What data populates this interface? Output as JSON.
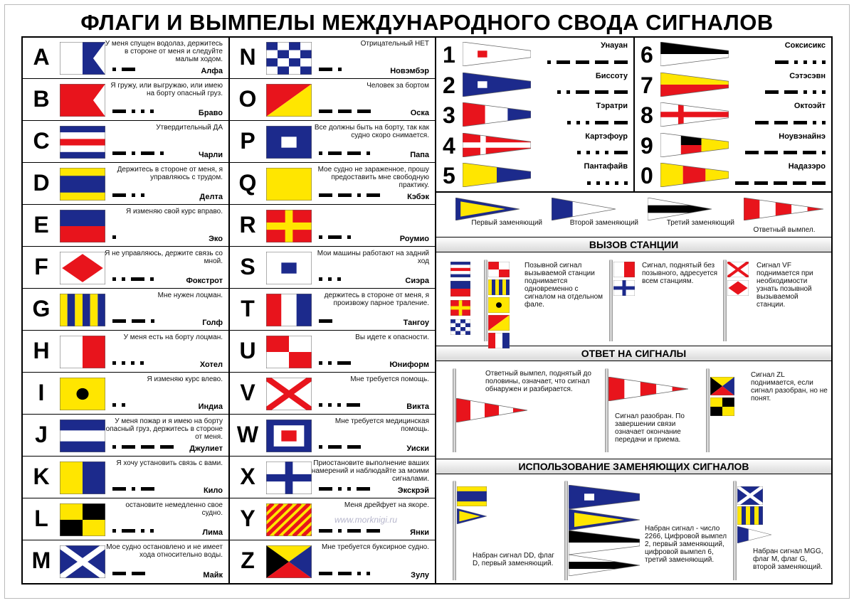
{
  "title": "ФЛАГИ И ВЫМПЕЛЫ МЕЖДУНАРОДНОГО СВОДА СИГНАЛОВ",
  "letters": [
    {
      "letter": "A",
      "meaning": "У меня спущен водолаз, держитесь в стороне от меня и следуйте малым ходом.",
      "name": "Алфа"
    },
    {
      "letter": "B",
      "meaning": "Я гружу, или выгружаю, или имею на борту опасный груз.",
      "name": "Браво"
    },
    {
      "letter": "C",
      "meaning": "Утвердительный ДА",
      "name": "Чарли"
    },
    {
      "letter": "D",
      "meaning": "Держитесь в стороне от меня, я управляюсь с трудом.",
      "name": "Делта"
    },
    {
      "letter": "E",
      "meaning": "Я изменяю свой курс вправо.",
      "name": "Эко"
    },
    {
      "letter": "F",
      "meaning": "Я не управляюсь, держите связь со мной.",
      "name": "Фокстрот"
    },
    {
      "letter": "G",
      "meaning": "Мне нужен лоцман.",
      "name": "Голф"
    },
    {
      "letter": "H",
      "meaning": "У меня есть на борту лоцман.",
      "name": "Хотел"
    },
    {
      "letter": "I",
      "meaning": "Я изменяю курс влево.",
      "name": "Индиа"
    },
    {
      "letter": "J",
      "meaning": "У меня пожар и я имею на борту опасный груз, держитесь в стороне от меня.",
      "name": "Джулиет"
    },
    {
      "letter": "K",
      "meaning": "Я хочу установить связь с вами.",
      "name": "Кило"
    },
    {
      "letter": "L",
      "meaning": "остановите немедленно свое судно.",
      "name": "Лима"
    },
    {
      "letter": "M",
      "meaning": "Мое судно остановлено и не имеет хода относительно воды.",
      "name": "Майк"
    },
    {
      "letter": "N",
      "meaning": "Отрицательный НЕТ",
      "name": "Новэмбэр"
    },
    {
      "letter": "O",
      "meaning": "Человек за бортом",
      "name": "Оска"
    },
    {
      "letter": "P",
      "meaning": "Все должны быть на борту, так как судно скоро снимается.",
      "name": "Папа"
    },
    {
      "letter": "Q",
      "meaning": "Мое судно не зараженное, прошу предоставить мне свободную практику.",
      "name": "Кэбэк"
    },
    {
      "letter": "R",
      "name": "Роумио"
    },
    {
      "letter": "S",
      "meaning": "Мои машины работают на задний ход",
      "name": "Сиэра"
    },
    {
      "letter": "T",
      "meaning": "держитесь в стороне от меня, я произвожу парное траление.",
      "name": "Тангоу"
    },
    {
      "letter": "U",
      "meaning": "Вы идете к опасности.",
      "name": "Юниформ"
    },
    {
      "letter": "V",
      "meaning": "Мне требуется помощь.",
      "name": "Викта"
    },
    {
      "letter": "W",
      "meaning": "Мне требуется медицинская помощь.",
      "name": "Уиски"
    },
    {
      "letter": "X",
      "meaning": "Приостановите выполнение ваших намерений и наблюдайте за моими сигналами.",
      "name": "Экскрэй"
    },
    {
      "letter": "Y",
      "meaning": "Меня дрейфует на якоре.",
      "name": "Янки"
    },
    {
      "letter": "Z",
      "meaning": "Мне требуется буксирное судно.",
      "name": "Зулу"
    }
  ],
  "numbers": [
    {
      "digit": "1",
      "name": "Унауан"
    },
    {
      "digit": "2",
      "name": "Биссоту"
    },
    {
      "digit": "3",
      "name": "Тэратри"
    },
    {
      "digit": "4",
      "name": "Картэфоур"
    },
    {
      "digit": "5",
      "name": "Пантафайв"
    },
    {
      "digit": "6",
      "name": "Соксисикс"
    },
    {
      "digit": "7",
      "name": "Сэтэсэвн"
    },
    {
      "digit": "8",
      "name": "Октоэйт"
    },
    {
      "digit": "9",
      "name": "Ноувэнайнэ"
    },
    {
      "digit": "0",
      "name": "Надазэро"
    }
  ],
  "substitutes": [
    "Первый заменяющий",
    "Второй заменяющий",
    "Третий заменяющий",
    "Ответный вымпел."
  ],
  "call": {
    "title": "ВЫЗОВ СТАНЦИИ",
    "items": [
      "Позывной сигнал вызываемой станции поднимается одновременно с сигналом на отдельном фале.",
      "Сигнал, поднятый без позывного, адресуется всем станциям.",
      "Сигнал VF поднимается при необходимости узнать позывной вызываемой станции."
    ]
  },
  "answer": {
    "title": "ОТВЕТ НА СИГНАЛЫ",
    "items": [
      "Ответный вымпел, поднятый до половины, означает, что сигнал обнаружен и разбирается.",
      "Сигнал разобран. По завершении связи означает окончание передачи и приема.",
      "Сигнал ZL поднимается, если сигнал разобран, но не понят."
    ]
  },
  "usage": {
    "title": "ИСПОЛЬЗОВАНИЕ ЗАМЕНЯЮЩИХ СИГНАЛОВ",
    "items": [
      "Набран сигнал DD, флаг D, первый заменяющий.",
      "Набран сигнал - число 2266, Цифровой вымпел 2, первый заменяющий, цифровой вымпел 6, третий заменяющий.",
      "Набран сигнал MGG, флаг M, флаг G, второй заменяющий."
    ]
  },
  "watermark": "www.morknigi.ru"
}
